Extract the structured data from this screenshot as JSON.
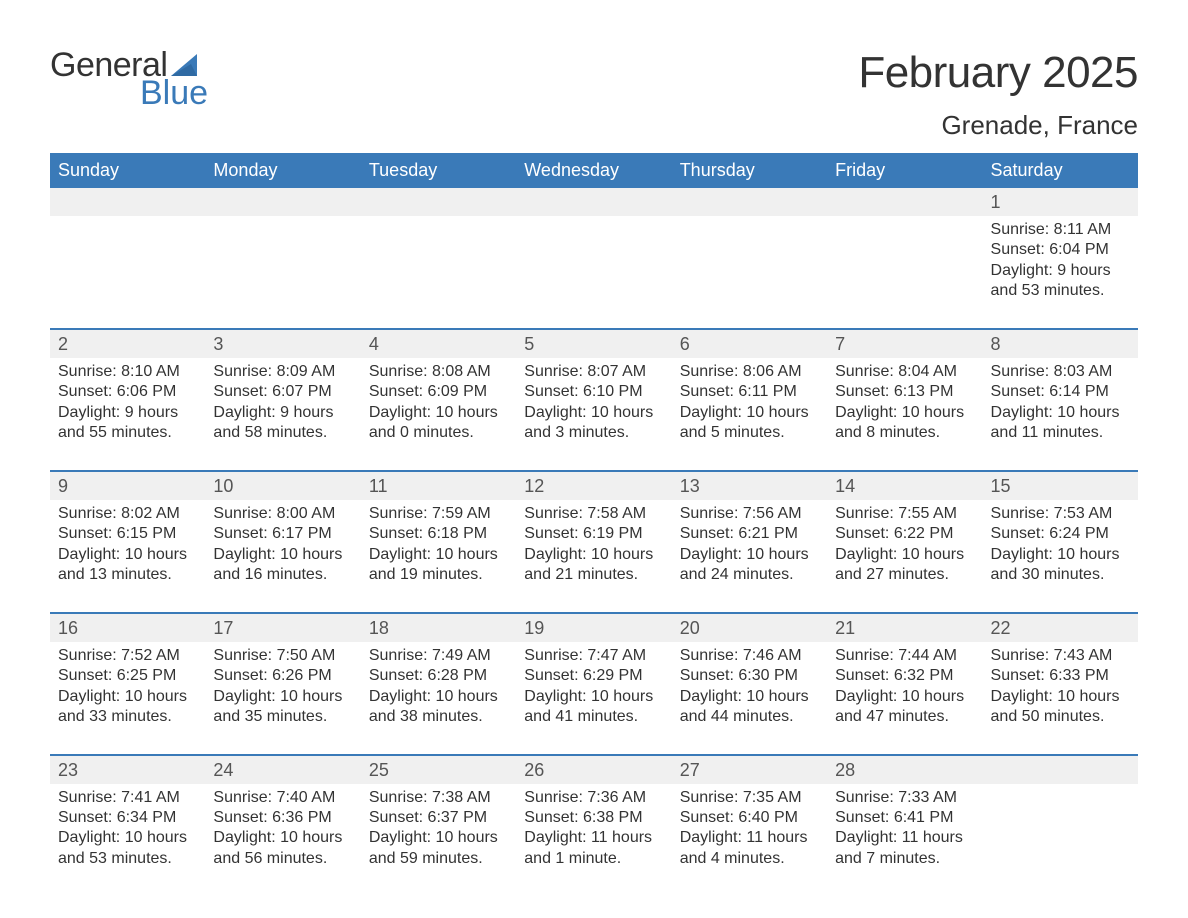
{
  "logo": {
    "word1": "General",
    "word2": "Blue",
    "sail_color": "#3a7ab8"
  },
  "title": "February 2025",
  "subtitle": "Grenade, France",
  "header_bg": "#3a7ab8",
  "daynum_bg": "#f0f0f0",
  "border_color": "#3a7ab8",
  "text_color": "#333333",
  "day_names": [
    "Sunday",
    "Monday",
    "Tuesday",
    "Wednesday",
    "Thursday",
    "Friday",
    "Saturday"
  ],
  "labels": {
    "sunrise": "Sunrise:",
    "sunset": "Sunset:",
    "daylight": "Daylight:"
  },
  "weeks": [
    {
      "first": true,
      "days": [
        {
          "blank": true
        },
        {
          "blank": true
        },
        {
          "blank": true
        },
        {
          "blank": true
        },
        {
          "blank": true
        },
        {
          "blank": true
        },
        {
          "num": "1",
          "sunrise": "8:11 AM",
          "sunset": "6:04 PM",
          "daylight": "9 hours and 53 minutes."
        }
      ]
    },
    {
      "days": [
        {
          "num": "2",
          "sunrise": "8:10 AM",
          "sunset": "6:06 PM",
          "daylight": "9 hours and 55 minutes."
        },
        {
          "num": "3",
          "sunrise": "8:09 AM",
          "sunset": "6:07 PM",
          "daylight": "9 hours and 58 minutes."
        },
        {
          "num": "4",
          "sunrise": "8:08 AM",
          "sunset": "6:09 PM",
          "daylight": "10 hours and 0 minutes."
        },
        {
          "num": "5",
          "sunrise": "8:07 AM",
          "sunset": "6:10 PM",
          "daylight": "10 hours and 3 minutes."
        },
        {
          "num": "6",
          "sunrise": "8:06 AM",
          "sunset": "6:11 PM",
          "daylight": "10 hours and 5 minutes."
        },
        {
          "num": "7",
          "sunrise": "8:04 AM",
          "sunset": "6:13 PM",
          "daylight": "10 hours and 8 minutes."
        },
        {
          "num": "8",
          "sunrise": "8:03 AM",
          "sunset": "6:14 PM",
          "daylight": "10 hours and 11 minutes."
        }
      ]
    },
    {
      "days": [
        {
          "num": "9",
          "sunrise": "8:02 AM",
          "sunset": "6:15 PM",
          "daylight": "10 hours and 13 minutes."
        },
        {
          "num": "10",
          "sunrise": "8:00 AM",
          "sunset": "6:17 PM",
          "daylight": "10 hours and 16 minutes."
        },
        {
          "num": "11",
          "sunrise": "7:59 AM",
          "sunset": "6:18 PM",
          "daylight": "10 hours and 19 minutes."
        },
        {
          "num": "12",
          "sunrise": "7:58 AM",
          "sunset": "6:19 PM",
          "daylight": "10 hours and 21 minutes."
        },
        {
          "num": "13",
          "sunrise": "7:56 AM",
          "sunset": "6:21 PM",
          "daylight": "10 hours and 24 minutes."
        },
        {
          "num": "14",
          "sunrise": "7:55 AM",
          "sunset": "6:22 PM",
          "daylight": "10 hours and 27 minutes."
        },
        {
          "num": "15",
          "sunrise": "7:53 AM",
          "sunset": "6:24 PM",
          "daylight": "10 hours and 30 minutes."
        }
      ]
    },
    {
      "days": [
        {
          "num": "16",
          "sunrise": "7:52 AM",
          "sunset": "6:25 PM",
          "daylight": "10 hours and 33 minutes."
        },
        {
          "num": "17",
          "sunrise": "7:50 AM",
          "sunset": "6:26 PM",
          "daylight": "10 hours and 35 minutes."
        },
        {
          "num": "18",
          "sunrise": "7:49 AM",
          "sunset": "6:28 PM",
          "daylight": "10 hours and 38 minutes."
        },
        {
          "num": "19",
          "sunrise": "7:47 AM",
          "sunset": "6:29 PM",
          "daylight": "10 hours and 41 minutes."
        },
        {
          "num": "20",
          "sunrise": "7:46 AM",
          "sunset": "6:30 PM",
          "daylight": "10 hours and 44 minutes."
        },
        {
          "num": "21",
          "sunrise": "7:44 AM",
          "sunset": "6:32 PM",
          "daylight": "10 hours and 47 minutes."
        },
        {
          "num": "22",
          "sunrise": "7:43 AM",
          "sunset": "6:33 PM",
          "daylight": "10 hours and 50 minutes."
        }
      ]
    },
    {
      "last": true,
      "days": [
        {
          "num": "23",
          "sunrise": "7:41 AM",
          "sunset": "6:34 PM",
          "daylight": "10 hours and 53 minutes."
        },
        {
          "num": "24",
          "sunrise": "7:40 AM",
          "sunset": "6:36 PM",
          "daylight": "10 hours and 56 minutes."
        },
        {
          "num": "25",
          "sunrise": "7:38 AM",
          "sunset": "6:37 PM",
          "daylight": "10 hours and 59 minutes."
        },
        {
          "num": "26",
          "sunrise": "7:36 AM",
          "sunset": "6:38 PM",
          "daylight": "11 hours and 1 minute."
        },
        {
          "num": "27",
          "sunrise": "7:35 AM",
          "sunset": "6:40 PM",
          "daylight": "11 hours and 4 minutes."
        },
        {
          "num": "28",
          "sunrise": "7:33 AM",
          "sunset": "6:41 PM",
          "daylight": "11 hours and 7 minutes."
        },
        {
          "blank": true
        }
      ]
    }
  ]
}
